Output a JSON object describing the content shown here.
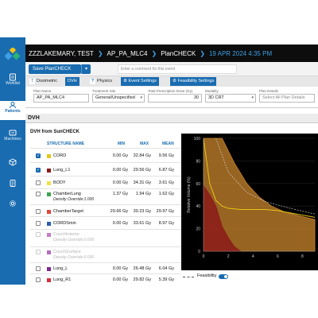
{
  "header": {
    "patient": "ZZZLAKEMARY, TEST",
    "plan": "AP_PA_MLC4",
    "module": "PlanCHECK",
    "date": "19 APR 2024 4:35 PM"
  },
  "sidebar": {
    "items": [
      {
        "label": "Worklist",
        "icon": "worklist-icon"
      },
      {
        "label": "Patients",
        "icon": "patients-icon"
      },
      {
        "label": "Machines",
        "icon": "machines-icon"
      },
      {
        "label": "",
        "icon": "cube-icon"
      },
      {
        "label": "",
        "icon": "clipboard-icon"
      },
      {
        "label": "",
        "icon": "gear-icon"
      }
    ],
    "active": "Patients"
  },
  "toolbar": {
    "save_label": "Save PlanCHECK",
    "comment_placeholder": "Enter a comment for this event"
  },
  "tabs": [
    "Dosimetric",
    "DVH",
    "Physics",
    "Event Settings",
    "Feasibility Settings"
  ],
  "fields": {
    "plan_name": {
      "label": "Plan Name",
      "value": "AP_PA_MLC4"
    },
    "treatment_site": {
      "label": "Treatment Site",
      "value": "General/Unspecified"
    },
    "total_dose": {
      "label": "Total Prescription Dose (Gy)",
      "value": "30"
    },
    "modality": {
      "label": "Modality",
      "value": "3D CRT"
    },
    "plan_details": {
      "label": "Plan Details",
      "value": "Select All Plan Details"
    }
  },
  "section": {
    "title": "DVH",
    "subtitle": "DVH from SunCHECK"
  },
  "table": {
    "headers": {
      "name": "STRUCTURE NAME",
      "min": "MIN",
      "max": "MAX",
      "mean": "MEAN"
    },
    "rows": [
      {
        "name": "CORD",
        "sub": "",
        "min": "0.00 Gy",
        "max": "32.84 Gy",
        "mean": "9.56 Gy",
        "checked": true,
        "dim": false,
        "color": "#e6c619"
      },
      {
        "name": "Lung_L1",
        "sub": "",
        "min": "0.00 Gy",
        "max": "29.56 Gy",
        "mean": "6.87 Gy",
        "checked": true,
        "dim": false,
        "color": "#8b1a1a"
      },
      {
        "name": "BODY",
        "sub": "",
        "min": "0.00 Gy",
        "max": "34.31 Gy",
        "mean": "3.61 Gy",
        "checked": false,
        "dim": false,
        "color": "#f0e04a"
      },
      {
        "name": "ChamberLung",
        "sub": "Density Override:1.000",
        "min": "1.37 Gy",
        "max": "1.94 Gy",
        "mean": "1.62 Gy",
        "checked": false,
        "dim": false,
        "color": "#3fa34d"
      },
      {
        "name": "ChamberTarget",
        "sub": "",
        "min": "29.66 Gy",
        "max": "30.23 Gy",
        "mean": "29.97 Gy",
        "checked": false,
        "dim": false,
        "color": "#e2463a"
      },
      {
        "name": "CORDSmin",
        "sub": "",
        "min": "0.00 Gy",
        "max": "33.61 Gy",
        "mean": "8.97 Gy",
        "checked": false,
        "dim": false,
        "color": "#2a5fb0"
      },
      {
        "name": "CouchInterior",
        "sub": "Density Override:0.000",
        "min": "",
        "max": "",
        "mean": "",
        "checked": false,
        "dim": true,
        "color": "#c77dc9"
      },
      {
        "name": "CouchSurface",
        "sub": "Density Override:0.000",
        "min": "",
        "max": "",
        "mean": "",
        "checked": false,
        "dim": true,
        "color": "#b86bc5"
      },
      {
        "name": "Lung_L",
        "sub": "",
        "min": "0.00 Gy",
        "max": "26.48 Gy",
        "mean": "6.04 Gy",
        "checked": false,
        "dim": false,
        "color": "#7a2a8f"
      },
      {
        "name": "Lung_R1",
        "sub": "",
        "min": "0.00 Gy",
        "max": "29.82 Gy",
        "mean": "5.39 Gy",
        "checked": false,
        "dim": false,
        "color": "#d62f3e"
      }
    ]
  },
  "chart_data": {
    "type": "area",
    "title": "",
    "xlabel": "",
    "ylabel": "Relative Volume (%)",
    "xlim": [
      0,
      9
    ],
    "ylim": [
      0,
      100
    ],
    "yticks": [
      "100",
      "80",
      "60",
      "40",
      "20",
      "0"
    ],
    "xticks": [
      "0",
      "2",
      "4",
      "6",
      "8"
    ],
    "series": [
      {
        "color": "#c9862e",
        "upper": [
          [
            0,
            100
          ],
          [
            1.5,
            100
          ],
          [
            2.5,
            78
          ],
          [
            3.5,
            60
          ],
          [
            4.5,
            48
          ],
          [
            5.5,
            40
          ],
          [
            6.5,
            35
          ],
          [
            7.5,
            32
          ],
          [
            9,
            28
          ]
        ],
        "lower": [
          [
            0,
            0
          ],
          [
            9,
            0
          ]
        ]
      },
      {
        "color": "#e6c619",
        "x": [
          0,
          0.5,
          1,
          1.5,
          2,
          3,
          4,
          5,
          6,
          7,
          8,
          9
        ],
        "y": [
          100,
          60,
          45,
          40,
          38,
          37,
          37,
          37,
          36,
          34,
          32,
          30
        ]
      },
      {
        "color": "#8b1a1a",
        "upper": [
          [
            0,
            58
          ],
          [
            0.5,
            50
          ],
          [
            1,
            40
          ],
          [
            1.5,
            22
          ],
          [
            2,
            12
          ],
          [
            2.5,
            4
          ],
          [
            3,
            0
          ]
        ],
        "lower": [
          [
            0,
            0
          ],
          [
            3,
            0
          ]
        ]
      }
    ],
    "legend": [
      {
        "label": "Feasibility",
        "style": "dashed"
      }
    ],
    "feasibility_on": true
  }
}
